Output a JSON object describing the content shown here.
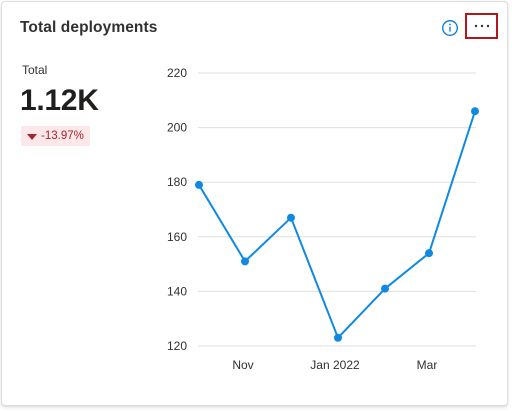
{
  "card": {
    "title": "Total deployments",
    "info_icon": "info-icon",
    "more_icon": "more-options-icon"
  },
  "kpi": {
    "label": "Total",
    "value": "1.12K",
    "change": "-13.97%",
    "change_direction": "down",
    "change_color": "#a4262c"
  },
  "colors": {
    "line": "#0f8ae0",
    "accent_highlight": "#b3171c",
    "info": "#0078d4"
  },
  "chart_data": {
    "type": "line",
    "x_tick_labels": [
      "Nov",
      "Jan 2022",
      "Mar"
    ],
    "y_ticks": [
      120,
      140,
      160,
      180,
      200,
      220
    ],
    "ylim": [
      120,
      220
    ],
    "grid": true,
    "series": [
      {
        "values": [
          179,
          151,
          167,
          123,
          141,
          154,
          206
        ]
      }
    ]
  }
}
